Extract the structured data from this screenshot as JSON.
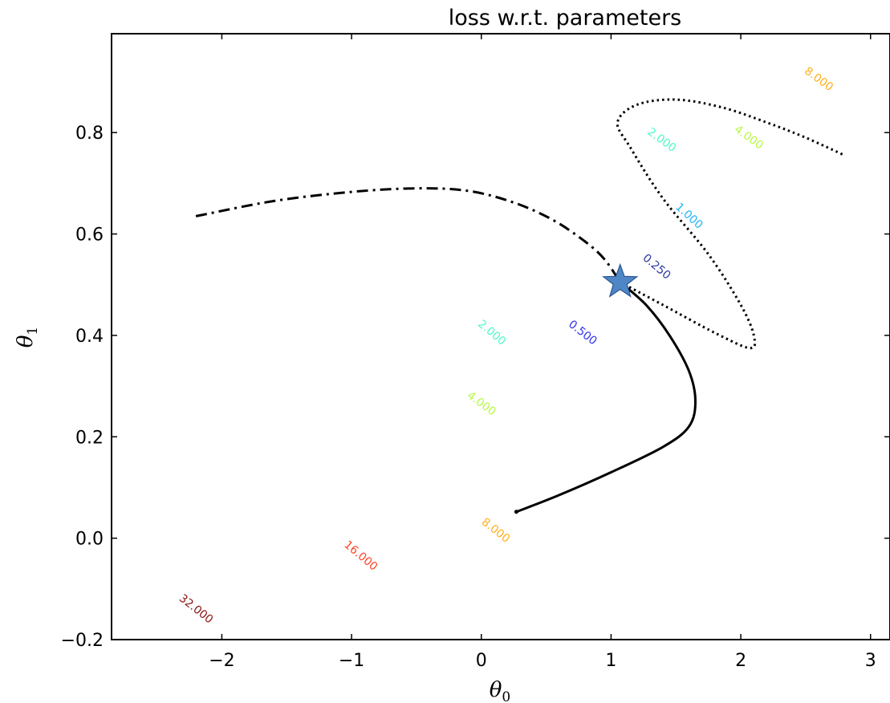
{
  "chart_data": {
    "type": "contour",
    "title": "loss w.r.t. parameters",
    "xlabel": "θ",
    "xlabel_sub": "0",
    "ylabel": "θ",
    "ylabel_sub": "1",
    "xlim": [
      -2.85,
      3.15
    ],
    "ylim": [
      -0.2,
      0.995
    ],
    "xticks": [
      {
        "value": -2,
        "label": "−2"
      },
      {
        "value": -1,
        "label": "−1"
      },
      {
        "value": 0,
        "label": "0"
      },
      {
        "value": 1,
        "label": "1"
      },
      {
        "value": 2,
        "label": "2"
      },
      {
        "value": 3,
        "label": "3"
      }
    ],
    "yticks": [
      {
        "value": -0.2,
        "label": "−0.2"
      },
      {
        "value": 0.0,
        "label": "0.0"
      },
      {
        "value": 0.2,
        "label": "0.2"
      },
      {
        "value": 0.4,
        "label": "0.4"
      },
      {
        "value": 0.6,
        "label": "0.6"
      },
      {
        "value": 0.8,
        "label": "0.8"
      }
    ],
    "contour_model": {
      "center": [
        1.07,
        0.5
      ],
      "a": 0.22,
      "b": 1.8,
      "c": 4.2
    },
    "contour_levels": [
      {
        "level": 0.25,
        "color": "#2b3a9e"
      },
      {
        "level": 0.5,
        "color": "#3434f0"
      },
      {
        "level": 1.0,
        "color": "#20b4f8"
      },
      {
        "level": 2.0,
        "color": "#50f8c8"
      },
      {
        "level": 4.0,
        "color": "#b8f848"
      },
      {
        "level": 8.0,
        "color": "#ffb01c"
      },
      {
        "level": 16.0,
        "color": "#ff4424"
      },
      {
        "level": 32.0,
        "color": "#8c1414"
      }
    ],
    "contour_labels": [
      {
        "text": "0.250",
        "x": 1.35,
        "y": 0.535,
        "color": "#2b3a9e",
        "angle": 40
      },
      {
        "text": "0.500",
        "x": 0.78,
        "y": 0.405,
        "color": "#3434f0",
        "angle": 38
      },
      {
        "text": "1.000",
        "x": 1.6,
        "y": 0.635,
        "color": "#20b4f8",
        "angle": 42
      },
      {
        "text": "2.000",
        "x": 1.39,
        "y": 0.785,
        "color": "#50f8c8",
        "angle": 36
      },
      {
        "text": "2.000",
        "x": 0.08,
        "y": 0.405,
        "color": "#50f8c8",
        "angle": 40
      },
      {
        "text": "4.000",
        "x": 2.06,
        "y": 0.79,
        "color": "#b8f848",
        "angle": 36
      },
      {
        "text": "4.000",
        "x": 0.0,
        "y": 0.265,
        "color": "#b8f848",
        "angle": 36
      },
      {
        "text": "8.000",
        "x": 2.6,
        "y": 0.905,
        "color": "#ffb01c",
        "angle": 36
      },
      {
        "text": "8.000",
        "x": 0.11,
        "y": 0.015,
        "color": "#ffb01c",
        "angle": 38
      },
      {
        "text": "16.000",
        "x": -0.93,
        "y": -0.035,
        "color": "#ff4424",
        "angle": 40
      },
      {
        "text": "32.000",
        "x": -2.2,
        "y": -0.14,
        "color": "#8c1414",
        "angle": 38
      }
    ],
    "paths": [
      {
        "name": "solid-path",
        "style": "solid",
        "points": [
          [
            0.27,
            0.052
          ],
          [
            0.6,
            0.085
          ],
          [
            1.0,
            0.13
          ],
          [
            1.4,
            0.18
          ],
          [
            1.6,
            0.22
          ],
          [
            1.65,
            0.27
          ],
          [
            1.6,
            0.33
          ],
          [
            1.45,
            0.4
          ],
          [
            1.27,
            0.46
          ],
          [
            1.07,
            0.505
          ]
        ]
      },
      {
        "name": "dashdot-path",
        "style": "dashdot",
        "points": [
          [
            -2.2,
            0.635
          ],
          [
            -1.6,
            0.665
          ],
          [
            -1.0,
            0.683
          ],
          [
            -0.5,
            0.69
          ],
          [
            -0.1,
            0.685
          ],
          [
            0.25,
            0.662
          ],
          [
            0.55,
            0.628
          ],
          [
            0.8,
            0.585
          ],
          [
            0.95,
            0.55
          ],
          [
            1.07,
            0.505
          ]
        ]
      },
      {
        "name": "dotted-path",
        "style": "dotted",
        "points": [
          [
            1.07,
            0.505
          ],
          [
            1.4,
            0.46
          ],
          [
            1.8,
            0.405
          ],
          [
            2.07,
            0.375
          ],
          [
            2.1,
            0.4
          ],
          [
            2.0,
            0.46
          ],
          [
            1.75,
            0.56
          ],
          [
            1.4,
            0.67
          ],
          [
            1.15,
            0.77
          ],
          [
            1.05,
            0.82
          ],
          [
            1.2,
            0.855
          ],
          [
            1.5,
            0.865
          ],
          [
            1.85,
            0.85
          ],
          [
            2.2,
            0.82
          ],
          [
            2.5,
            0.79
          ],
          [
            2.8,
            0.755
          ]
        ]
      }
    ],
    "marker": {
      "shape": "star",
      "x": 1.07,
      "y": 0.505,
      "color": "#4f86c6"
    },
    "grid": false
  }
}
